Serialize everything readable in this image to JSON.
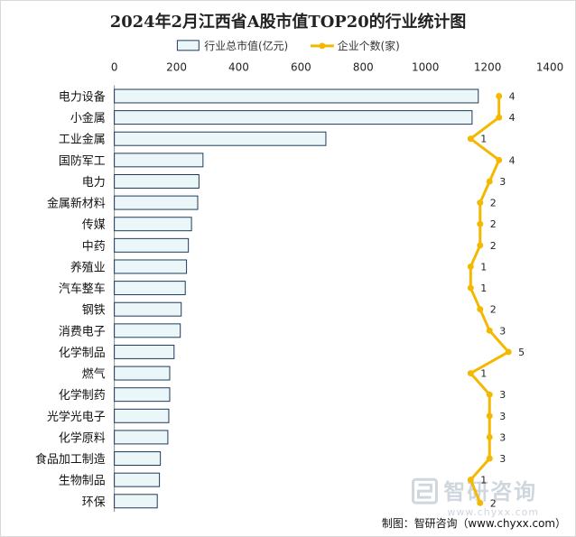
{
  "chart_data": {
    "type": "bar",
    "title": "2024年2月江西省A股市值TOP20的行业统计图",
    "categories": [
      "电力设备",
      "小金属",
      "工业金属",
      "国防军工",
      "电力",
      "金属新材料",
      "传媒",
      "中药",
      "养殖业",
      "汽车整车",
      "钢铁",
      "消费电子",
      "化学制品",
      "燃气",
      "化学制药",
      "光学光电子",
      "化学原料",
      "食品加工制造",
      "生物制品",
      "环保"
    ],
    "series": [
      {
        "name": "行业总市值(亿元)",
        "type": "bar",
        "color": "#eaf6f8",
        "stroke": "#1f3a5a",
        "values": [
          1170,
          1150,
          680,
          285,
          272,
          268,
          248,
          238,
          232,
          228,
          215,
          212,
          192,
          178,
          178,
          175,
          172,
          148,
          145,
          138
        ]
      },
      {
        "name": "企业个数(家)",
        "type": "line",
        "color": "#f5b800",
        "values": [
          4,
          4,
          1,
          4,
          3,
          2,
          2,
          2,
          1,
          1,
          2,
          3,
          5,
          1,
          3,
          3,
          3,
          3,
          1,
          2
        ]
      }
    ],
    "x_ticks": [
      "0",
      "200",
      "400",
      "600",
      "800",
      "1000",
      "1200",
      "1400"
    ],
    "xlim": [
      0,
      1400
    ],
    "legend_position": "top",
    "grid": false
  },
  "watermark": {
    "brand": "智研咨询",
    "url": "www.chyxx.com"
  },
  "source_text": "制图：智研咨询（www.chyxx.com）"
}
